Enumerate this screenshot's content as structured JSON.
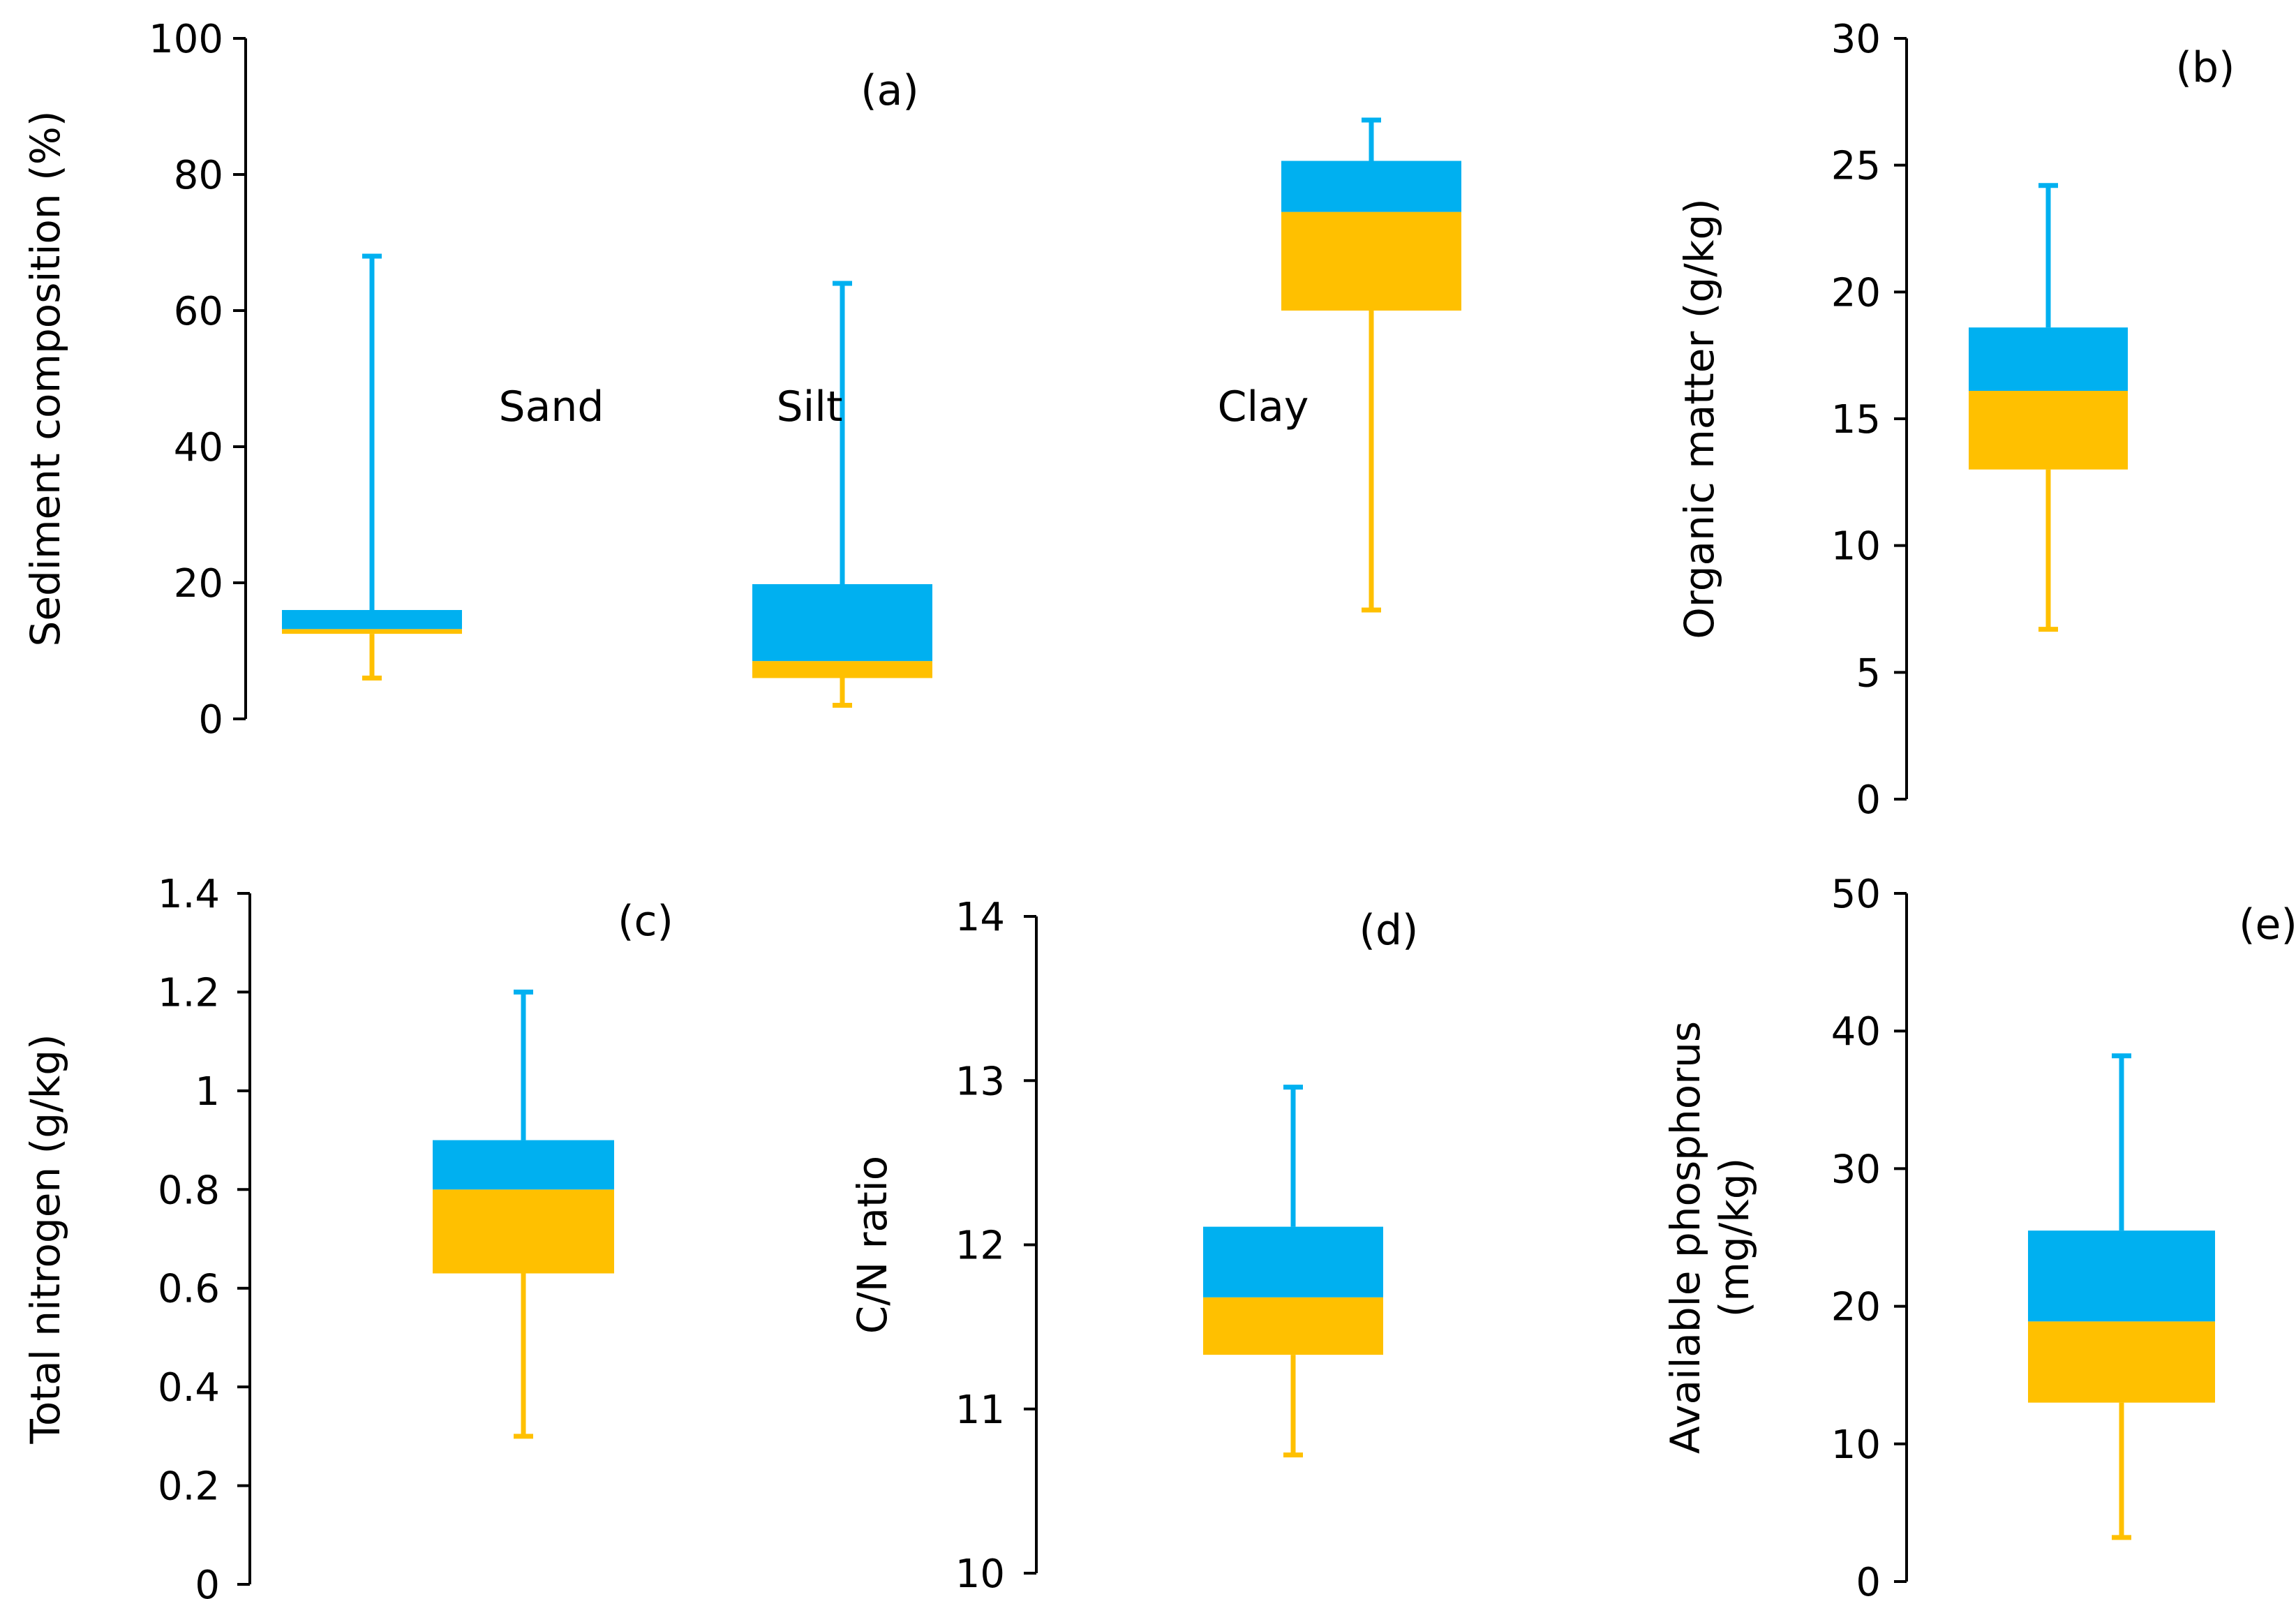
{
  "colors": {
    "upper": "#00B0F0",
    "lower": "#FFC000",
    "axis": "#000000"
  },
  "chart_data": [
    {
      "id": "a",
      "type": "box",
      "panel_label": "(a)",
      "ylabel": "Sediment composition (%)",
      "ylim": [
        0,
        100
      ],
      "ticks": [
        "0",
        "20",
        "40",
        "60",
        "80",
        "100"
      ],
      "boxes": [
        {
          "category": "Sand",
          "min": 6,
          "q1": 12.5,
          "median": 13.2,
          "q3": 16,
          "max": 68
        },
        {
          "category": "Silt",
          "min": 2,
          "q1": 6,
          "median": 8.5,
          "q3": 19.8,
          "max": 64
        },
        {
          "category": "Clay",
          "min": 16,
          "q1": 60,
          "median": 74.5,
          "q3": 82,
          "max": 88
        }
      ]
    },
    {
      "id": "b",
      "type": "box",
      "panel_label": "(b)",
      "ylabel": "Organic matter (g/kg)",
      "ylim": [
        0,
        30
      ],
      "ticks": [
        "0",
        "5",
        "10",
        "15",
        "20",
        "25",
        "30"
      ],
      "boxes": [
        {
          "category": "",
          "min": 6.7,
          "q1": 13,
          "median": 16.1,
          "q3": 18.6,
          "max": 24.2
        }
      ]
    },
    {
      "id": "c",
      "type": "box",
      "panel_label": "(c)",
      "ylabel": "Total nitrogen (g/kg)",
      "ylim": [
        0,
        1.4
      ],
      "ticks": [
        "0",
        "0.2",
        "0.4",
        "0.6",
        "0.8",
        "1",
        "1.2",
        "1.4"
      ],
      "boxes": [
        {
          "category": "",
          "min": 0.3,
          "q1": 0.63,
          "median": 0.8,
          "q3": 0.9,
          "max": 1.2
        }
      ]
    },
    {
      "id": "d",
      "type": "box",
      "panel_label": "(d)",
      "ylabel": "C/N ratio",
      "ylim": [
        10,
        14
      ],
      "ticks": [
        "10",
        "11",
        "12",
        "13",
        "14"
      ],
      "boxes": [
        {
          "category": "",
          "min": 10.72,
          "q1": 11.33,
          "median": 11.68,
          "q3": 12.11,
          "max": 12.96
        }
      ]
    },
    {
      "id": "e",
      "type": "box",
      "panel_label": "(e)",
      "ylabel_lines": [
        "Available phosphorus",
        "(mg/kg)"
      ],
      "ylim": [
        0,
        50
      ],
      "ticks": [
        "0",
        "10",
        "20",
        "30",
        "40",
        "50"
      ],
      "boxes": [
        {
          "category": "",
          "min": 3.2,
          "q1": 13,
          "median": 18.9,
          "q3": 25.5,
          "max": 38.2
        }
      ]
    }
  ]
}
